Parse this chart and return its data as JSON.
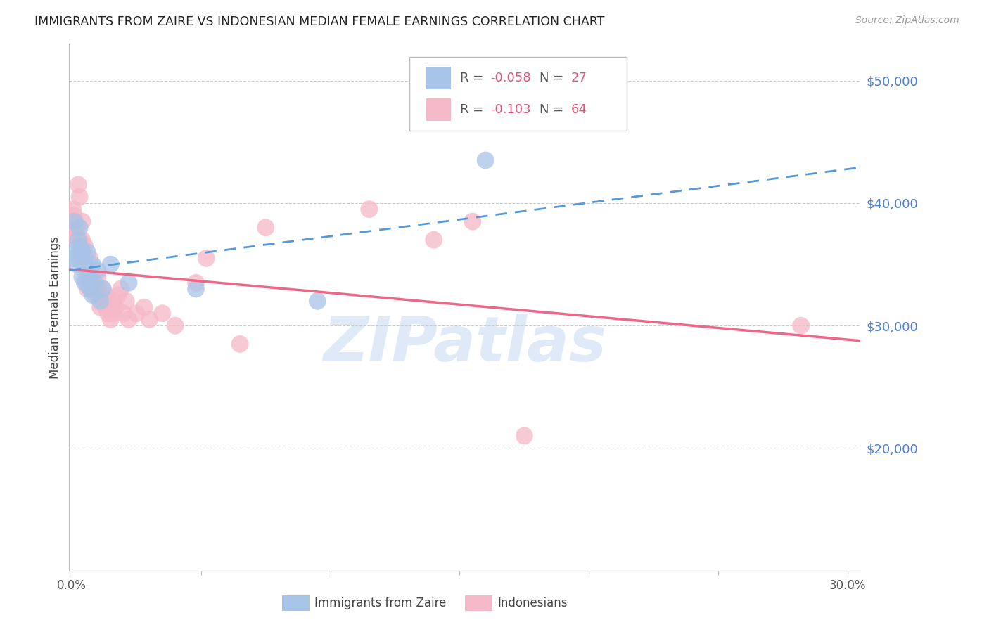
{
  "title": "IMMIGRANTS FROM ZAIRE VS INDONESIAN MEDIAN FEMALE EARNINGS CORRELATION CHART",
  "source": "Source: ZipAtlas.com",
  "ylabel": "Median Female Earnings",
  "y_ticks": [
    20000,
    30000,
    40000,
    50000
  ],
  "y_tick_labels": [
    "$20,000",
    "$30,000",
    "$40,000",
    "$50,000"
  ],
  "y_min": 10000,
  "y_max": 53000,
  "x_min": -0.001,
  "x_max": 0.305,
  "legend_blue_r": "-0.058",
  "legend_blue_n": "27",
  "legend_pink_r": "-0.103",
  "legend_pink_n": "64",
  "blue_color": "#a8c4e8",
  "pink_color": "#f5b8c8",
  "line_blue_color": "#5599dd",
  "line_pink_color": "#ee6688",
  "watermark": "ZIPatlas",
  "blue_scatter_x": [
    0.0005,
    0.001,
    0.0015,
    0.002,
    0.0025,
    0.003,
    0.003,
    0.0035,
    0.004,
    0.004,
    0.005,
    0.005,
    0.006,
    0.006,
    0.007,
    0.007,
    0.008,
    0.008,
    0.009,
    0.01,
    0.011,
    0.012,
    0.015,
    0.022,
    0.048,
    0.095,
    0.16
  ],
  "blue_scatter_y": [
    35500,
    38500,
    36000,
    35000,
    37000,
    36500,
    38000,
    35500,
    34000,
    36000,
    35000,
    33500,
    34500,
    36000,
    34000,
    33000,
    35000,
    32500,
    33500,
    34500,
    32000,
    33000,
    35000,
    33500,
    33000,
    32000,
    43500
  ],
  "pink_scatter_x": [
    0.0003,
    0.0005,
    0.0008,
    0.001,
    0.001,
    0.0015,
    0.002,
    0.002,
    0.0025,
    0.003,
    0.003,
    0.003,
    0.0035,
    0.004,
    0.004,
    0.004,
    0.0045,
    0.005,
    0.005,
    0.005,
    0.0055,
    0.006,
    0.006,
    0.007,
    0.007,
    0.007,
    0.008,
    0.008,
    0.009,
    0.009,
    0.01,
    0.01,
    0.011,
    0.011,
    0.012,
    0.012,
    0.013,
    0.013,
    0.014,
    0.014,
    0.015,
    0.015,
    0.016,
    0.016,
    0.017,
    0.018,
    0.019,
    0.02,
    0.021,
    0.022,
    0.025,
    0.028,
    0.03,
    0.035,
    0.04,
    0.048,
    0.052,
    0.065,
    0.075,
    0.115,
    0.14,
    0.155,
    0.175,
    0.282
  ],
  "pink_scatter_y": [
    38500,
    39500,
    39000,
    37500,
    38000,
    38500,
    37000,
    38000,
    41500,
    40500,
    36000,
    37000,
    36500,
    36000,
    37000,
    38500,
    35000,
    35500,
    36500,
    34500,
    33500,
    34000,
    33000,
    33500,
    34500,
    35500,
    33000,
    34000,
    32500,
    33000,
    33000,
    34000,
    32500,
    31500,
    33000,
    32000,
    32500,
    31500,
    31000,
    32000,
    30500,
    31500,
    32000,
    31000,
    31500,
    32500,
    33000,
    31000,
    32000,
    30500,
    31000,
    31500,
    30500,
    31000,
    30000,
    33500,
    35500,
    28500,
    38000,
    39500,
    37000,
    38500,
    21000,
    30000
  ]
}
